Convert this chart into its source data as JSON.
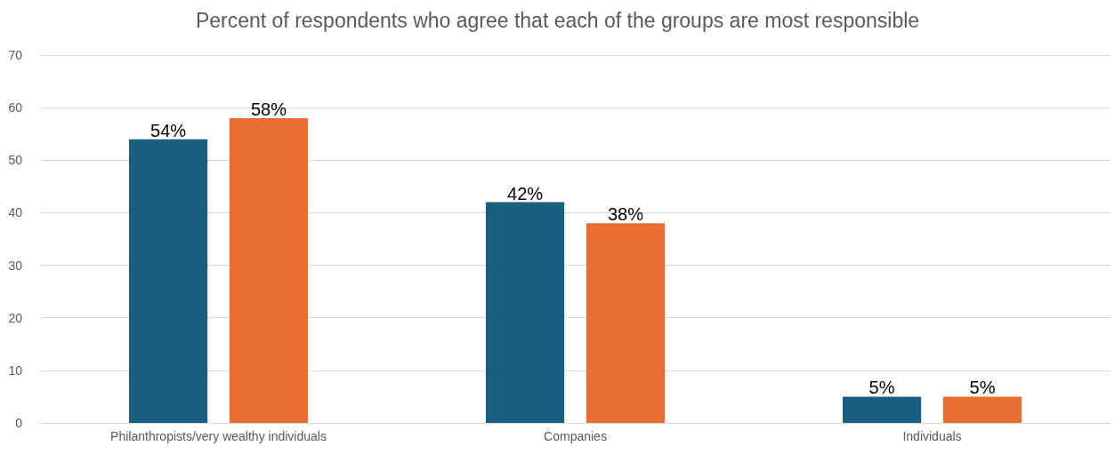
{
  "chart_data": {
    "type": "bar",
    "title": "Percent of respondents who agree that each of the groups are most responsible",
    "categories": [
      "Philanthropists/very wealthy individuals",
      "Companies",
      "Individuals"
    ],
    "series": [
      {
        "color": "#1b5f80",
        "values": [
          54,
          42,
          5
        ],
        "value_labels": [
          "54%",
          "42%",
          "5%"
        ]
      },
      {
        "color": "#e86f32",
        "values": [
          58,
          38,
          5
        ],
        "value_labels": [
          "58%",
          "38%",
          "5%"
        ]
      }
    ],
    "ylim": [
      0,
      70
    ],
    "yticks": [
      0,
      10,
      20,
      30,
      40,
      50,
      60,
      70
    ],
    "grid": "y"
  }
}
